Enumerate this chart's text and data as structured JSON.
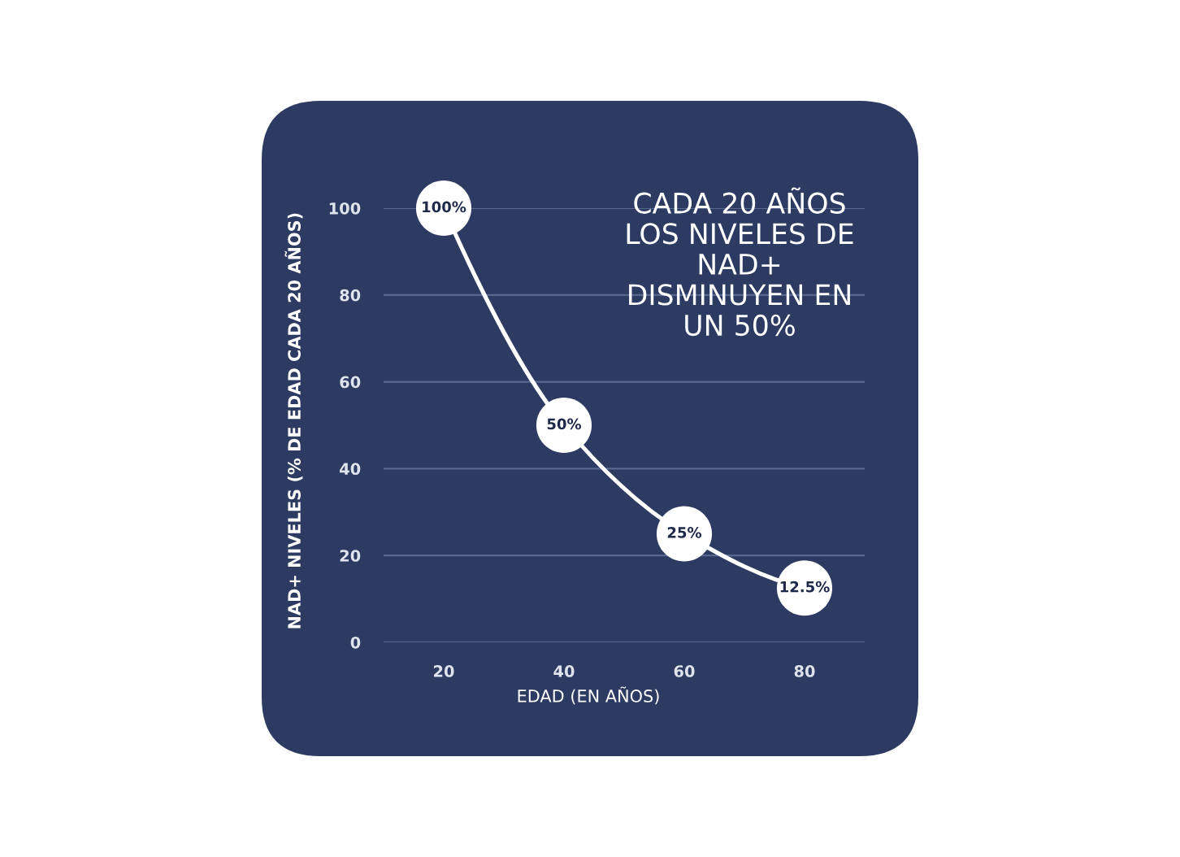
{
  "chart_data": {
    "type": "line",
    "xlabel": "EDAD (EN AÑOS)",
    "ylabel": "NAD+ NIVELES (% DE EDAD CADA 20 AÑOS)",
    "x": [
      20,
      40,
      60,
      80
    ],
    "series": [
      {
        "color": "#ffffff",
        "values": [
          100,
          50,
          25,
          12.5
        ],
        "value_labels": [
          "100%",
          "50%",
          "25%",
          "12.5%"
        ]
      }
    ],
    "xlim": [
      10,
      90
    ],
    "ylim": [
      0,
      100
    ],
    "xticks": [
      20,
      40,
      60,
      80
    ],
    "yticks": [
      0,
      20,
      40,
      60,
      80,
      100
    ],
    "grid": "y",
    "marker": "circle",
    "line_style": "solid",
    "annotations": [
      "CADA 20 AÑOS\nLOS NIVELES DE\nNAD+\nDISMINUYEN EN\nUN 50%"
    ]
  }
}
